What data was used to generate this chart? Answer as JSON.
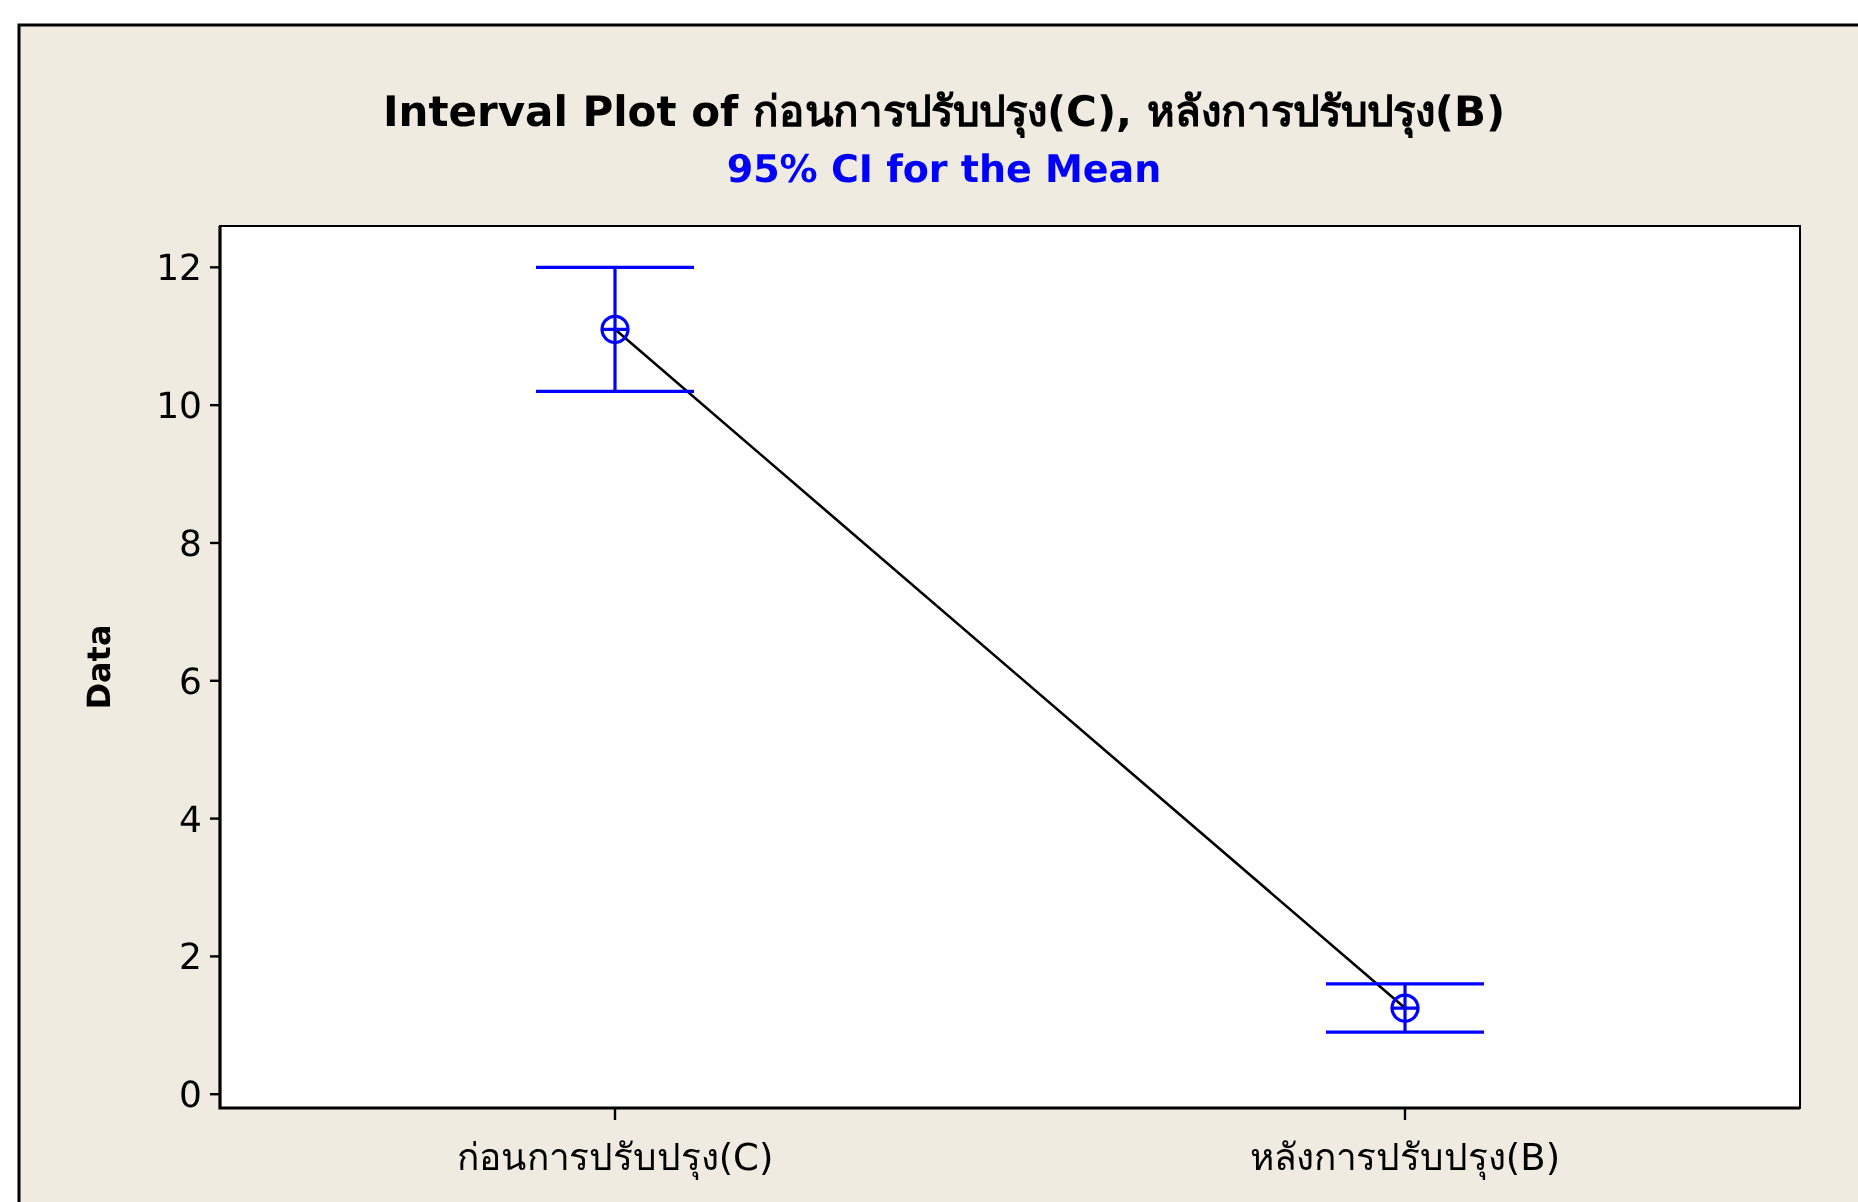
{
  "chart_data": {
    "type": "line",
    "title": "Interval Plot of ก่อนการปรับปรุง(C), หลังการปรับปรุง(B)",
    "subtitle": "95% CI for the Mean",
    "ylabel": "Data",
    "categories": [
      "ก่อนการปรับปรุง(C)",
      "หลังการปรับปรุง(B)"
    ],
    "series": [
      {
        "color": "#000000",
        "values": [
          11.1,
          1.25
        ]
      },
      {
        "type": "scatter",
        "color": "#0000ff",
        "marker": "circle",
        "values": [
          11.1,
          1.25
        ],
        "errors": [
          [
            10.2,
            12.0
          ],
          [
            0.9,
            1.6
          ]
        ]
      }
    ],
    "ylim": [
      -0.2,
      12.6
    ],
    "yticks": [
      0,
      2,
      4,
      6,
      8,
      10,
      12
    ]
  }
}
